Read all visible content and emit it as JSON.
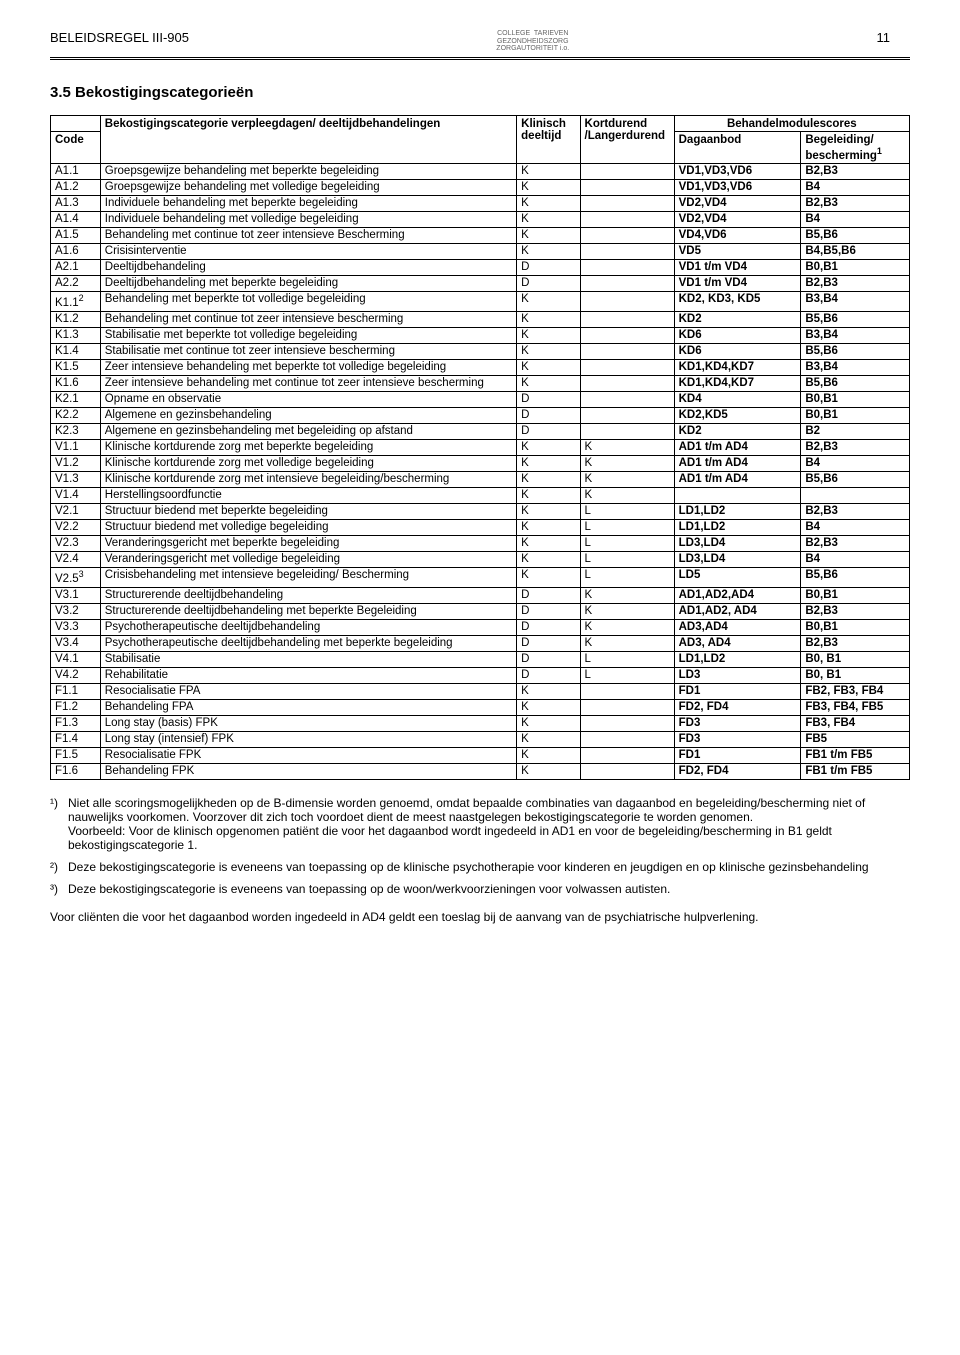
{
  "header": {
    "left": "BELEIDSREGEL III-905",
    "center": "COLLEGE  TARIEVEN\nGEZONDHEIDSZORG\nZORGAUTORITEIT i.o.",
    "pagenum": "11"
  },
  "section_title": "3.5 Bekostigingscategorieën",
  "table_header": {
    "c0_top": "",
    "c0_bot": "Code",
    "c1_top": "Bekostigingscategorie verpleegdagen/ deeltijdbehandelingen",
    "c1_bot": "",
    "c2_top": "Klinisch deeltijd",
    "c2_bot": "",
    "c3_top": "Kortdurend /Langerdurend",
    "c3_bot": "",
    "c45_top": "Behandelmodulescores",
    "c4_bot": "Dagaanbod",
    "c5_bot_prefix": "Begeleiding/ bescherming",
    "c5_bot_sup": "1"
  },
  "rows": [
    {
      "code": "A1.1",
      "desc": "Groepsgewijze behandeling met beperkte begeleiding",
      "k1": "K",
      "k2": "",
      "dag": "VD1,VD3,VD6",
      "beg": "B2,B3"
    },
    {
      "code": "A1.2",
      "desc": "Groepsgewijze behandeling met volledige begeleiding",
      "k1": "K",
      "k2": "",
      "dag": "VD1,VD3,VD6",
      "beg": "B4"
    },
    {
      "code": "A1.3",
      "desc": "Individuele behandeling met beperkte begeleiding",
      "k1": "K",
      "k2": "",
      "dag": "VD2,VD4",
      "beg": "B2,B3"
    },
    {
      "code": "A1.4",
      "desc": "Individuele behandeling met volledige begeleiding",
      "k1": "K",
      "k2": "",
      "dag": "VD2,VD4",
      "beg": "B4"
    },
    {
      "code": "A1.5",
      "desc": "Behandeling met continue tot zeer intensieve Bescherming",
      "k1": "K",
      "k2": "",
      "dag": "VD4,VD6",
      "beg": "B5,B6"
    },
    {
      "code": "A1.6",
      "desc": "Crisisinterventie",
      "k1": "K",
      "k2": "",
      "dag": "VD5",
      "beg": "B4,B5,B6"
    },
    {
      "code": "A2.1",
      "desc": "Deeltijdbehandeling",
      "k1": "D",
      "k2": "",
      "dag": "VD1 t/m VD4",
      "beg": "B0,B1"
    },
    {
      "code": "A2.2",
      "desc": "Deeltijdbehandeling met beperkte begeleiding",
      "k1": "D",
      "k2": "",
      "dag": "VD1 t/m VD4",
      "beg": "B2,B3"
    },
    {
      "code": "K1.1",
      "code_sup": "2",
      "desc": "Behandeling met beperkte tot volledige begeleiding",
      "k1": "K",
      "k2": "",
      "dag": "KD2, KD3, KD5",
      "beg": "B3,B4"
    },
    {
      "code": "K1.2",
      "desc": "Behandeling met continue tot zeer intensieve bescherming",
      "k1": "K",
      "k2": "",
      "dag": "KD2",
      "beg": "B5,B6"
    },
    {
      "code": "K1.3",
      "desc": "Stabilisatie met beperkte tot volledige begeleiding",
      "k1": "K",
      "k2": "",
      "dag": "KD6",
      "beg": "B3,B4"
    },
    {
      "code": "K1.4",
      "desc": "Stabilisatie met continue tot zeer intensieve bescherming",
      "k1": "K",
      "k2": "",
      "dag": "KD6",
      "beg": "B5,B6"
    },
    {
      "code": "K1.5",
      "desc": "Zeer intensieve behandeling met beperkte tot volledige begeleiding",
      "k1": "K",
      "k2": "",
      "dag": "KD1,KD4,KD7",
      "beg": "B3,B4"
    },
    {
      "code": "K1.6",
      "desc": "Zeer intensieve behandeling met continue tot zeer intensieve bescherming",
      "k1": "K",
      "k2": "",
      "dag": "KD1,KD4,KD7",
      "beg": "B5,B6"
    },
    {
      "code": "K2.1",
      "desc": "Opname en observatie",
      "k1": "D",
      "k2": "",
      "dag": "KD4",
      "beg": "B0,B1"
    },
    {
      "code": "K2.2",
      "desc": "Algemene en gezinsbehandeling",
      "k1": "D",
      "k2": "",
      "dag": "KD2,KD5",
      "beg": "B0,B1"
    },
    {
      "code": "K2.3",
      "desc": "Algemene en gezinsbehandeling met begeleiding op afstand",
      "k1": "D",
      "k2": "",
      "dag": "KD2",
      "beg": "B2"
    },
    {
      "code": "V1.1",
      "desc": "Klinische kortdurende zorg met beperkte begeleiding",
      "k1": "K",
      "k2": "K",
      "dag": "AD1 t/m AD4",
      "beg": "B2,B3"
    },
    {
      "code": "V1.2",
      "desc": "Klinische kortdurende zorg met volledige begeleiding",
      "k1": "K",
      "k2": "K",
      "dag": "AD1 t/m AD4",
      "beg": "B4"
    },
    {
      "code": "V1.3",
      "desc": "Klinische kortdurende zorg met intensieve begeleiding/bescherming",
      "k1": "K",
      "k2": "K",
      "dag": "AD1 t/m AD4",
      "beg": "B5,B6"
    },
    {
      "code": "V1.4",
      "desc": "Herstellingsoordfunctie",
      "k1": "K",
      "k2": "K",
      "dag": "",
      "beg": ""
    },
    {
      "code": "V2.1",
      "desc": "Structuur biedend met beperkte begeleiding",
      "k1": "K",
      "k2": "L",
      "dag": "LD1,LD2",
      "beg": "B2,B3"
    },
    {
      "code": "V2.2",
      "desc": "Structuur biedend met volledige begeleiding",
      "k1": "K",
      "k2": "L",
      "dag": "LD1,LD2",
      "beg": "B4"
    },
    {
      "code": "V2.3",
      "desc": "Veranderingsgericht met beperkte begeleiding",
      "k1": "K",
      "k2": "L",
      "dag": "LD3,LD4",
      "beg": "B2,B3"
    },
    {
      "code": "V2.4",
      "desc": "Veranderingsgericht met volledige begeleiding",
      "k1": "K",
      "k2": "L",
      "dag": "LD3,LD4",
      "beg": "B4"
    },
    {
      "code": "V2.5",
      "code_sup": "3",
      "desc": "Crisisbehandeling met intensieve begeleiding/ Bescherming",
      "k1": "K",
      "k2": "L",
      "dag": "LD5",
      "beg": "B5,B6"
    },
    {
      "code": "V3.1",
      "desc": "Structurerende deeltijdbehandeling",
      "k1": "D",
      "k2": "K",
      "dag": "AD1,AD2,AD4",
      "beg": "B0,B1"
    },
    {
      "code": "V3.2",
      "desc": "Structurerende deeltijdbehandeling met beperkte Begeleiding",
      "k1": "D",
      "k2": "K",
      "dag": "AD1,AD2, AD4",
      "beg": "B2,B3"
    },
    {
      "code": "V3.3",
      "desc": "Psychotherapeutische deeltijdbehandeling",
      "k1": "D",
      "k2": "K",
      "dag": "AD3,AD4",
      "beg": "B0,B1"
    },
    {
      "code": "V3.4",
      "desc": "Psychotherapeutische deeltijdbehandeling met beperkte begeleiding",
      "k1": "D",
      "k2": "K",
      "dag": "AD3, AD4",
      "beg": "B2,B3"
    },
    {
      "code": "V4.1",
      "desc": "Stabilisatie",
      "k1": "D",
      "k2": "L",
      "dag": "LD1,LD2",
      "beg": "B0, B1"
    },
    {
      "code": "V4.2",
      "desc": "Rehabilitatie",
      "k1": "D",
      "k2": "L",
      "dag": "LD3",
      "beg": "B0, B1"
    },
    {
      "code": "F1.1",
      "desc": "Resocialisatie FPA",
      "k1": "K",
      "k2": "",
      "dag": "FD1",
      "beg": "FB2, FB3, FB4"
    },
    {
      "code": "F1.2",
      "desc": "Behandeling FPA",
      "k1": "K",
      "k2": "",
      "dag": "FD2, FD4",
      "beg": "FB3, FB4, FB5"
    },
    {
      "code": "F1.3",
      "desc": "Long stay (basis) FPK",
      "k1": "K",
      "k2": "",
      "dag": "FD3",
      "beg": "FB3, FB4"
    },
    {
      "code": "F1.4",
      "desc": "Long stay (intensief) FPK",
      "k1": "K",
      "k2": "",
      "dag": "FD3",
      "beg": "FB5"
    },
    {
      "code": "F1.5",
      "desc": "Resocialisatie FPK",
      "k1": "K",
      "k2": "",
      "dag": "FD1",
      "beg": "FB1 t/m FB5"
    },
    {
      "code": "F1.6",
      "desc": "Behandeling FPK",
      "k1": "K",
      "k2": "",
      "dag": "FD2, FD4",
      "beg": "FB1 t/m FB5"
    }
  ],
  "footnotes": [
    {
      "marker": "¹)",
      "text": "Niet alle scoringsmogelijkheden op de B-dimensie worden genoemd, omdat bepaalde combinaties van dagaanbod en begeleiding/bescherming niet of nauwelijks voorkomen. Voorzover dit zich toch voordoet dient de meest naastgelegen bekostigingscategorie te worden genomen.\nVoorbeeld: Voor de klinisch opgenomen patiënt die voor het dagaanbod wordt ingedeeld in AD1 en voor de begeleiding/bescherming in B1 geldt bekostigingscategorie 1."
    },
    {
      "marker": "²)",
      "text": "Deze bekostigingscategorie is eveneens van toepassing op de klinische psychotherapie voor kinderen en jeugdigen en op klinische gezinsbehandeling"
    },
    {
      "marker": "³)",
      "text": "Deze bekostigingscategorie is eveneens van toepassing op de woon/werkvoorzieningen voor volwassen autisten."
    }
  ],
  "closing": "Voor cliënten die voor het dagaanbod worden ingedeeld in AD4 geldt een toeslag bij de aanvang van de psychiatrische hulpverlening."
}
